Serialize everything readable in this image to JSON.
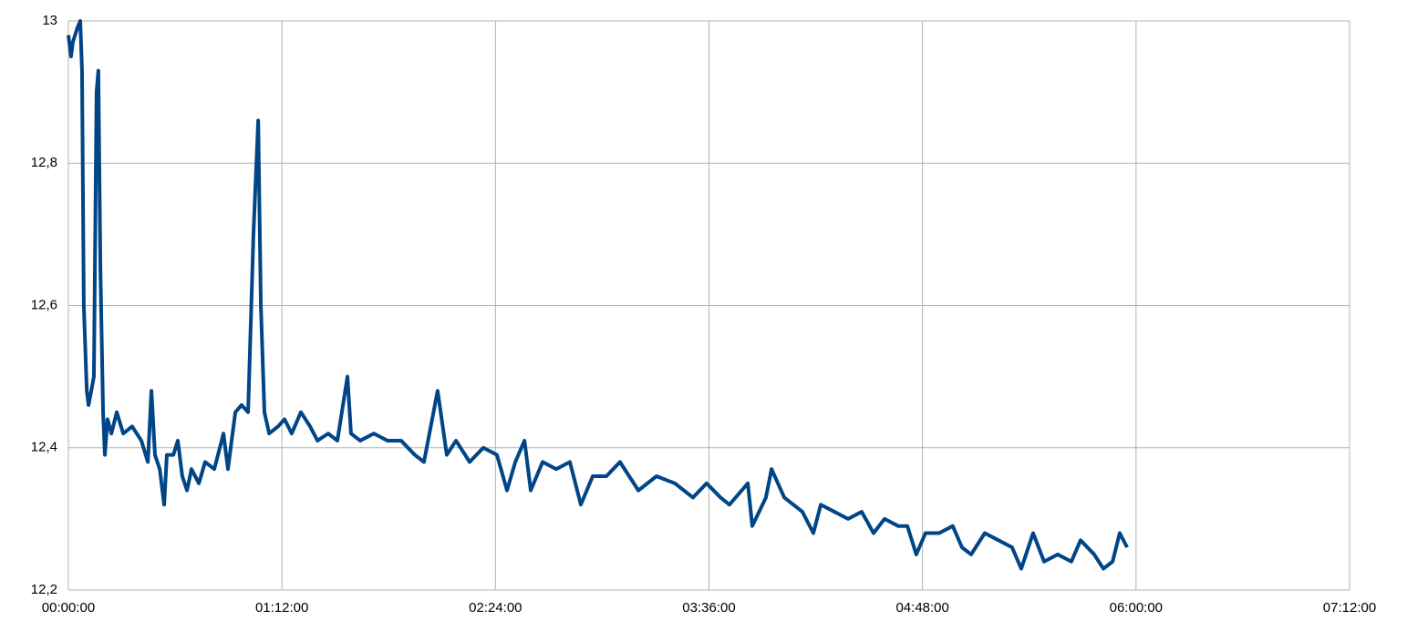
{
  "chart_data": {
    "type": "line",
    "x": [
      0,
      0.9,
      1.5,
      3,
      4,
      4.6,
      5.2,
      6.2,
      6.8,
      7.7,
      8.6,
      9.5,
      10.1,
      10.8,
      11.7,
      12.3,
      13.2,
      14.5,
      16.3,
      18.5,
      21.5,
      24.6,
      26.8,
      28,
      29.2,
      30.8,
      32.3,
      33.2,
      35.4,
      36.9,
      38.4,
      40,
      41.5,
      44,
      46.1,
      49.2,
      52.3,
      53.8,
      56.3,
      58.4,
      60.6,
      62.4,
      64,
      64.9,
      66.1,
      67.7,
      70.7,
      72.9,
      75.3,
      78.4,
      81.5,
      84,
      87.6,
      90.7,
      94.1,
      95.3,
      98.4,
      103,
      107.6,
      112.2,
      116.8,
      119.9,
      124.5,
      127.6,
      130.7,
      135.3,
      139.9,
      144.5,
      147.9,
      150.7,
      153.8,
      155.9,
      159.9,
      164.5,
      169.1,
      172.8,
      176.8,
      181.4,
      186,
      192.2,
      198.3,
      204.5,
      210.6,
      215.2,
      219.9,
      222.9,
      229.1,
      230.6,
      235.2,
      237.1,
      241.4,
      247.5,
      251.2,
      253.7,
      258.3,
      262.9,
      267.5,
      271.5,
      275.2,
      279.8,
      282.9,
      285.9,
      289,
      293.6,
      298.2,
      301.3,
      304.4,
      309,
      313.6,
      318.2,
      321.3,
      325.3,
      329,
      333.6,
      338.2,
      341.3,
      345.9,
      349,
      352.1,
      354.5,
      357
    ],
    "series": [
      {
        "color": "#004586",
        "values": [
          12.98,
          12.95,
          12.97,
          12.99,
          13.0,
          12.93,
          12.6,
          12.48,
          12.46,
          12.48,
          12.5,
          12.9,
          12.93,
          12.65,
          12.45,
          12.39,
          12.44,
          12.42,
          12.45,
          12.42,
          12.43,
          12.41,
          12.38,
          12.48,
          12.39,
          12.37,
          12.32,
          12.39,
          12.39,
          12.41,
          12.36,
          12.34,
          12.37,
          12.35,
          12.38,
          12.37,
          12.42,
          12.37,
          12.45,
          12.46,
          12.45,
          12.7,
          12.86,
          12.6,
          12.45,
          12.42,
          12.43,
          12.44,
          12.42,
          12.45,
          12.43,
          12.41,
          12.42,
          12.41,
          12.5,
          12.42,
          12.41,
          12.42,
          12.41,
          12.41,
          12.39,
          12.38,
          12.48,
          12.39,
          12.41,
          12.38,
          12.4,
          12.39,
          12.34,
          12.38,
          12.41,
          12.34,
          12.38,
          12.37,
          12.38,
          12.32,
          12.36,
          12.36,
          12.38,
          12.34,
          12.36,
          12.35,
          12.33,
          12.35,
          12.33,
          12.32,
          12.35,
          12.29,
          12.33,
          12.37,
          12.33,
          12.31,
          12.28,
          12.32,
          12.31,
          12.3,
          12.31,
          12.28,
          12.3,
          12.29,
          12.29,
          12.25,
          12.28,
          12.28,
          12.29,
          12.26,
          12.25,
          12.28,
          12.27,
          12.26,
          12.23,
          12.28,
          12.24,
          12.25,
          12.24,
          12.27,
          12.25,
          12.23,
          12.24,
          12.28,
          12.26
        ]
      }
    ],
    "xlim": [
      0,
      432
    ],
    "xticks": [
      {
        "value": 0,
        "label": "00:00:00"
      },
      {
        "value": 72,
        "label": "01:12:00"
      },
      {
        "value": 144,
        "label": "02:24:00"
      },
      {
        "value": 216,
        "label": "03:36:00"
      },
      {
        "value": 288,
        "label": "04:48:00"
      },
      {
        "value": 360,
        "label": "06:00:00"
      },
      {
        "value": 432,
        "label": "07:12:00"
      }
    ],
    "ylim": [
      12.2,
      13
    ],
    "yticks": [
      {
        "value": 12.2,
        "label": "12,2"
      },
      {
        "value": 12.4,
        "label": "12,4"
      },
      {
        "value": 12.6,
        "label": "12,6"
      },
      {
        "value": 12.8,
        "label": "12,8"
      },
      13
    ],
    "grid": true
  }
}
